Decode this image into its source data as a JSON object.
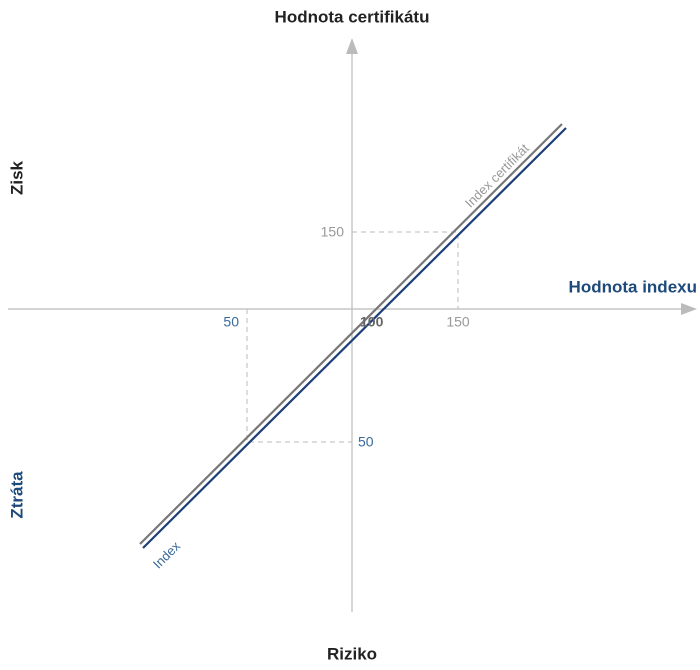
{
  "title": "Hodnota certifikátu",
  "y_axis": {
    "top_label": "Zisk",
    "bottom_label": "Ztráta",
    "bottom_title": "Riziko"
  },
  "x_axis": {
    "title": "Hodnota indexu"
  },
  "lines": [
    {
      "label": "Index certifikát"
    },
    {
      "label": "Index"
    }
  ],
  "ticks": {
    "y_high": "150",
    "x_high": "150",
    "x_low": "50",
    "y_low": "50",
    "origin": "100"
  }
}
